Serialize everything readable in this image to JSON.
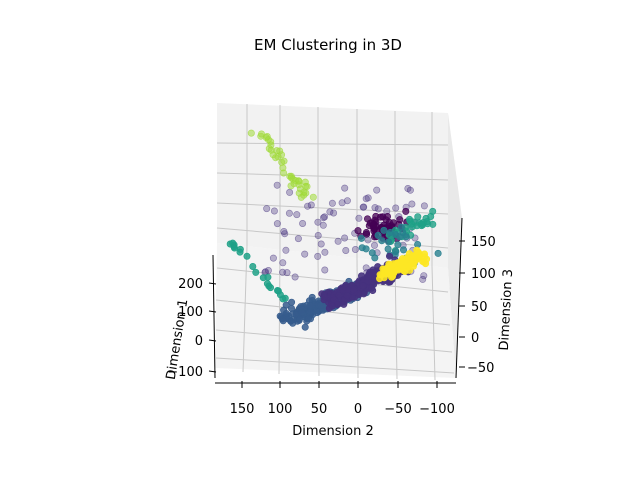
{
  "chart_data": {
    "type": "scatter",
    "projection": "3d",
    "title": "EM Clustering in 3D",
    "xlabel": "Dimension 1",
    "ylabel": "Dimension 2",
    "zlabel": "Dimension 3",
    "x_ticks": [
      "200",
      "100",
      "0",
      "−100"
    ],
    "y_ticks": [
      "150",
      "100",
      "50",
      "0",
      "−50",
      "−100"
    ],
    "z_ticks": [
      "150",
      "100",
      "50",
      "0",
      "−50"
    ],
    "grid": true,
    "legend": "none",
    "colormap": "viridis",
    "pane_color": "#f2f2f2",
    "grid_color": "#c8c8c8",
    "clusters": [
      {
        "cluster": 0,
        "color": "#440154",
        "center_2d_hint": "upper-right cluster",
        "count": 60
      },
      {
        "cluster": 1,
        "color": "#46327e",
        "center_2d_hint": "band along lower curve",
        "count": 300
      },
      {
        "cluster": 2,
        "color": "#365c8d",
        "center_2d_hint": "lower-left band",
        "count": 220
      },
      {
        "cluster": 3,
        "color": "#277f8e",
        "center_2d_hint": "lower-left arc",
        "count": 40
      },
      {
        "cluster": 4,
        "color": "#1fa187",
        "center_2d_hint": "edges",
        "count": 40
      },
      {
        "cluster": 5,
        "color": "#4ac16d",
        "center_2d_hint": "right arc",
        "count": 30
      },
      {
        "cluster": 6,
        "color": "#a0da39",
        "center_2d_hint": "upper-left tail",
        "count": 40
      },
      {
        "cluster": 7,
        "color": "#fde725",
        "center_2d_hint": "right band",
        "count": 120
      },
      {
        "cluster": 8,
        "color": "#3b528b",
        "center_2d_hint": "scattered middle",
        "count": 90
      }
    ]
  }
}
